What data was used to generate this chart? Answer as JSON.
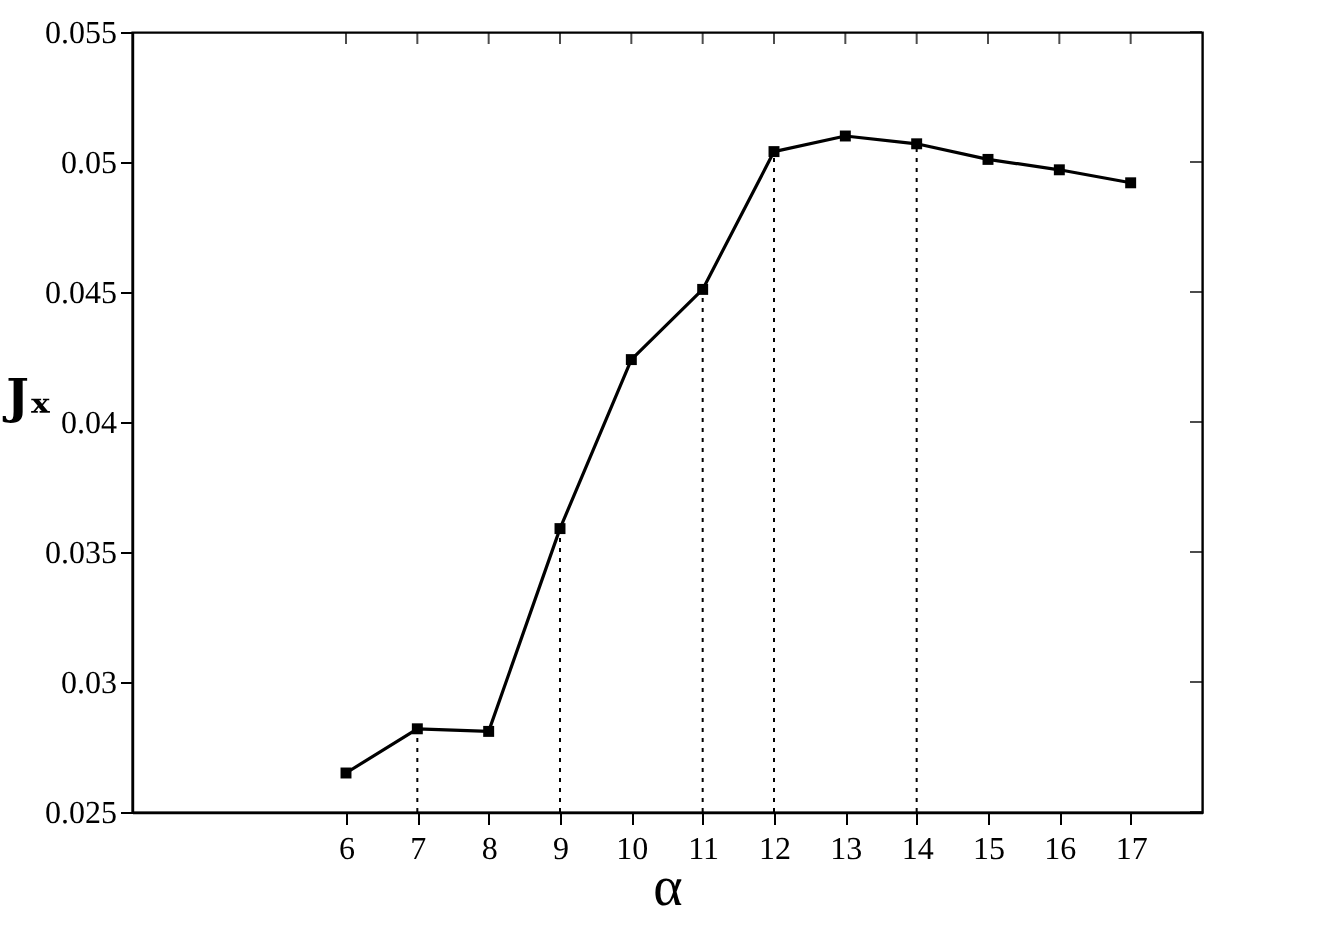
{
  "chart_data": {
    "type": "line",
    "xlabel": "α",
    "ylabel": "Jₓ",
    "x": [
      6,
      7,
      8,
      9,
      10,
      11,
      12,
      13,
      14,
      15,
      16,
      17
    ],
    "series": [
      {
        "color": "#000000",
        "values": [
          0.0265,
          0.0282,
          0.0281,
          0.0359,
          0.0424,
          0.0451,
          0.0504,
          0.051,
          0.0507,
          0.0501,
          0.0497,
          0.0492
        ]
      }
    ],
    "xlim": [
      3,
      18
    ],
    "xticks": [
      6,
      7,
      8,
      9,
      10,
      11,
      12,
      13,
      14,
      15,
      16,
      17
    ],
    "ylim": [
      0.025,
      0.055
    ],
    "yticks": [
      0.025,
      0.03,
      0.035,
      0.04,
      0.045,
      0.05,
      0.055
    ],
    "ref_lines": [
      {
        "axis": "x",
        "value": 7,
        "line_style": "dotted",
        "color": "#000000"
      },
      {
        "axis": "x",
        "value": 9,
        "line_style": "dotted",
        "color": "#000000"
      },
      {
        "axis": "x",
        "value": 11,
        "line_style": "dotted",
        "color": "#000000"
      },
      {
        "axis": "x",
        "value": 12,
        "line_style": "dotted",
        "color": "#000000"
      },
      {
        "axis": "x",
        "value": 14,
        "line_style": "dotted",
        "color": "#000000"
      }
    ],
    "marker": "square",
    "line_style": "solid",
    "grid": false
  }
}
